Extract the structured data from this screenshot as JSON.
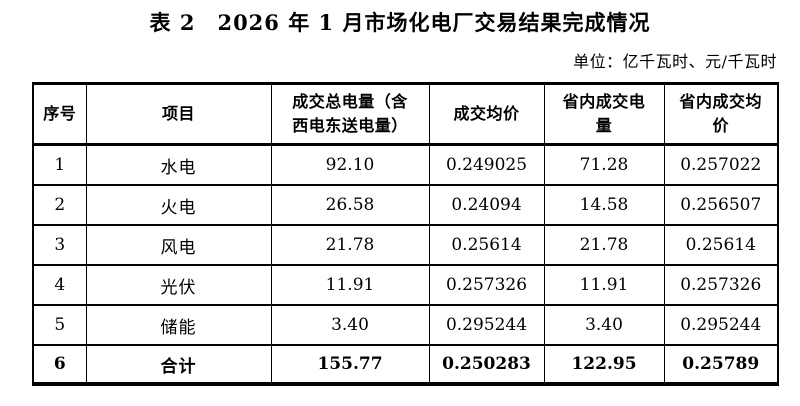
{
  "page": {
    "title": "表 2　2026 年 1 月市场化电厂交易结果完成情况",
    "unit_note": "单位：亿千瓦时、元/千瓦时"
  },
  "table": {
    "headers": [
      "序号",
      "项目",
      "成交总电量（含\n西电东送电量）",
      "成交均价",
      "省内成交电\n量",
      "省内成交均\n价"
    ],
    "rows": [
      {
        "cells": [
          "1",
          "水电",
          "92.10",
          "0.249025",
          "71.28",
          "0.257022"
        ]
      },
      {
        "cells": [
          "2",
          "火电",
          "26.58",
          "0.24094",
          "14.58",
          "0.256507"
        ]
      },
      {
        "cells": [
          "3",
          "风电",
          "21.78",
          "0.25614",
          "21.78",
          "0.25614"
        ]
      },
      {
        "cells": [
          "4",
          "光伏",
          "11.91",
          "0.257326",
          "11.91",
          "0.257326"
        ]
      },
      {
        "cells": [
          "5",
          "储能",
          "3.40",
          "0.295244",
          "3.40",
          "0.295244"
        ]
      },
      {
        "cells": [
          "6",
          "合计",
          "155.77",
          "0.250283",
          "122.95",
          "0.25789"
        ]
      }
    ]
  }
}
